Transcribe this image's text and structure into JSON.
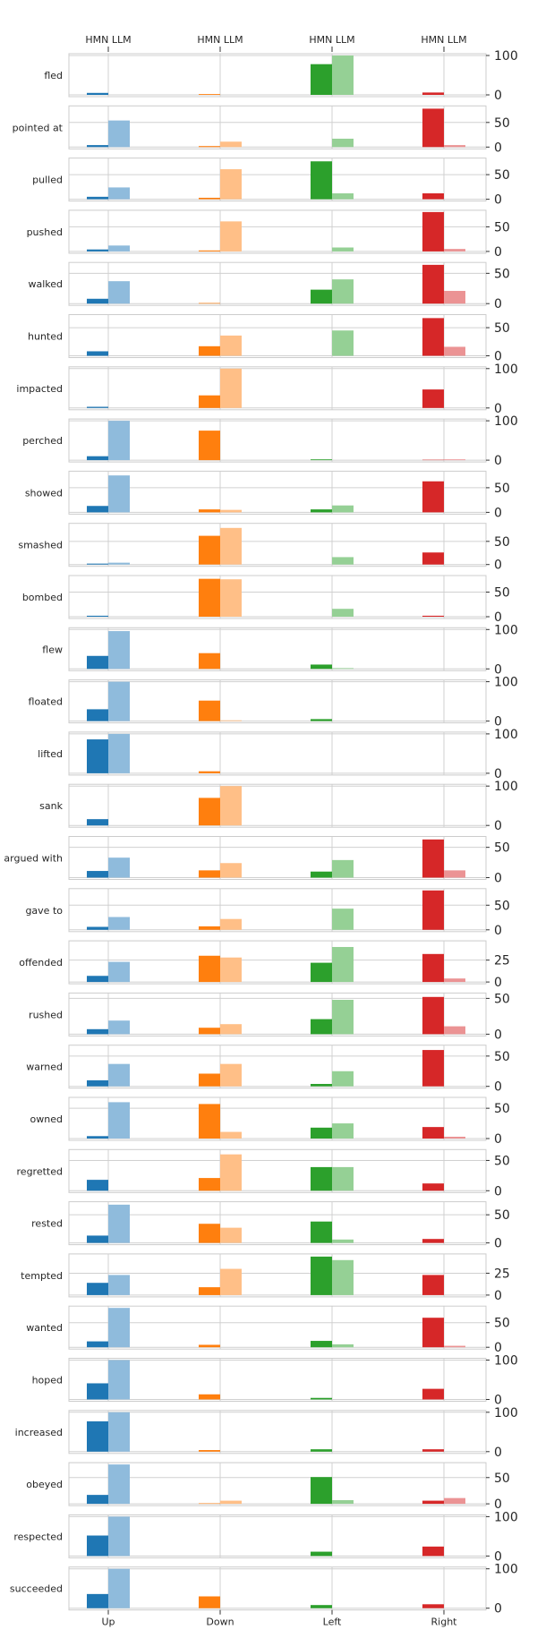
{
  "chart_data": {
    "type": "bar",
    "categories": [
      "Up",
      "Down",
      "Left",
      "Right"
    ],
    "top_labels": [
      "HMN LLM",
      "HMN LLM",
      "HMN LLM",
      "HMN LLM"
    ],
    "series_names": [
      "HMN",
      "LLM"
    ],
    "colors": {
      "Up": [
        "#1f77b4",
        "#8fbbdc"
      ],
      "Down": [
        "#ff7f0e",
        "#ffbf87"
      ],
      "Left": [
        "#2ca02c",
        "#95d095"
      ],
      "Right": [
        "#d62728",
        "#eb9394"
      ]
    },
    "grid": true,
    "panels": [
      {
        "label": "fled",
        "ymax": 100,
        "yticks": [
          0,
          100
        ],
        "hmn": [
          5,
          2,
          78,
          6
        ],
        "llm": [
          0,
          0,
          100,
          0
        ]
      },
      {
        "label": "pointed at",
        "ymax": 80,
        "yticks": [
          0,
          50
        ],
        "hmn": [
          4,
          2,
          0,
          78
        ],
        "llm": [
          54,
          11,
          17,
          4
        ]
      },
      {
        "label": "pulled",
        "ymax": 80,
        "yticks": [
          0,
          50
        ],
        "hmn": [
          5,
          3,
          77,
          12
        ],
        "llm": [
          24,
          61,
          12,
          0
        ]
      },
      {
        "label": "pushed",
        "ymax": 80,
        "yticks": [
          0,
          50
        ],
        "hmn": [
          4,
          2,
          0,
          80
        ],
        "llm": [
          12,
          61,
          8,
          5
        ]
      },
      {
        "label": "walked",
        "ymax": 65,
        "yticks": [
          0,
          50
        ],
        "hmn": [
          8,
          1,
          23,
          64
        ],
        "llm": [
          37,
          0,
          40,
          21
        ]
      },
      {
        "label": "hunted",
        "ymax": 70,
        "yticks": [
          0,
          50
        ],
        "hmn": [
          8,
          17,
          0,
          67
        ],
        "llm": [
          0,
          36,
          45,
          16
        ]
      },
      {
        "label": "impacted",
        "ymax": 100,
        "yticks": [
          0,
          100
        ],
        "hmn": [
          3,
          32,
          0,
          47
        ],
        "llm": [
          0,
          100,
          0,
          0
        ]
      },
      {
        "label": "perched",
        "ymax": 100,
        "yticks": [
          0,
          100
        ],
        "hmn": [
          10,
          75,
          2,
          1
        ],
        "llm": [
          100,
          0,
          0,
          2
        ]
      },
      {
        "label": "showed",
        "ymax": 80,
        "yticks": [
          0,
          50
        ],
        "hmn": [
          13,
          6,
          6,
          63
        ],
        "llm": [
          75,
          5,
          14,
          0
        ]
      },
      {
        "label": "smashed",
        "ymax": 85,
        "yticks": [
          0,
          50
        ],
        "hmn": [
          2,
          62,
          0,
          26
        ],
        "llm": [
          4,
          79,
          16,
          0
        ]
      },
      {
        "label": "bombed",
        "ymax": 80,
        "yticks": [
          0,
          50
        ],
        "hmn": [
          2,
          77,
          0,
          2
        ],
        "llm": [
          0,
          76,
          16,
          0
        ]
      },
      {
        "label": "flew",
        "ymax": 100,
        "yticks": [
          0,
          100
        ],
        "hmn": [
          33,
          40,
          11,
          0
        ],
        "llm": [
          96,
          0,
          2,
          0
        ]
      },
      {
        "label": "floated",
        "ymax": 100,
        "yticks": [
          0,
          100
        ],
        "hmn": [
          30,
          52,
          5,
          0
        ],
        "llm": [
          100,
          2,
          0,
          0
        ]
      },
      {
        "label": "lifted",
        "ymax": 100,
        "yticks": [
          0,
          100
        ],
        "hmn": [
          86,
          5,
          0,
          0
        ],
        "llm": [
          100,
          0,
          0,
          0
        ]
      },
      {
        "label": "sank",
        "ymax": 100,
        "yticks": [
          0,
          100
        ],
        "hmn": [
          16,
          70,
          0,
          0
        ],
        "llm": [
          0,
          100,
          0,
          0
        ]
      },
      {
        "label": "argued with",
        "ymax": 65,
        "yticks": [
          0,
          50
        ],
        "hmn": [
          11,
          12,
          10,
          63
        ],
        "llm": [
          33,
          24,
          29,
          12
        ]
      },
      {
        "label": "gave to",
        "ymax": 80,
        "yticks": [
          0,
          50
        ],
        "hmn": [
          6,
          7,
          0,
          80
        ],
        "llm": [
          26,
          22,
          43,
          0
        ]
      },
      {
        "label": "offended",
        "ymax": 45,
        "yticks": [
          0,
          25
        ],
        "hmn": [
          7,
          30,
          22,
          32
        ],
        "llm": [
          23,
          28,
          40,
          4
        ]
      },
      {
        "label": "rushed",
        "ymax": 55,
        "yticks": [
          0,
          50
        ],
        "hmn": [
          7,
          9,
          21,
          52
        ],
        "llm": [
          19,
          14,
          48,
          11
        ]
      },
      {
        "label": "warned",
        "ymax": 65,
        "yticks": [
          0,
          50
        ],
        "hmn": [
          10,
          21,
          4,
          60
        ],
        "llm": [
          37,
          37,
          25,
          0
        ]
      },
      {
        "label": "owned",
        "ymax": 65,
        "yticks": [
          0,
          50
        ],
        "hmn": [
          4,
          57,
          18,
          19
        ],
        "llm": [
          60,
          11,
          25,
          3
        ]
      },
      {
        "label": "regretted",
        "ymax": 65,
        "yticks": [
          0,
          50
        ],
        "hmn": [
          18,
          21,
          39,
          12
        ],
        "llm": [
          0,
          60,
          39,
          0
        ]
      },
      {
        "label": "rested",
        "ymax": 70,
        "yticks": [
          0,
          50
        ],
        "hmn": [
          13,
          34,
          38,
          7
        ],
        "llm": [
          68,
          27,
          6,
          0
        ]
      },
      {
        "label": "tempted",
        "ymax": 45,
        "yticks": [
          0,
          25
        ],
        "hmn": [
          14,
          9,
          44,
          23
        ],
        "llm": [
          23,
          30,
          40,
          0
        ]
      },
      {
        "label": "wanted",
        "ymax": 80,
        "yticks": [
          0,
          50
        ],
        "hmn": [
          12,
          5,
          13,
          60
        ],
        "llm": [
          80,
          0,
          6,
          3
        ]
      },
      {
        "label": "hoped",
        "ymax": 100,
        "yticks": [
          0,
          100
        ],
        "hmn": [
          41,
          13,
          4,
          27
        ],
        "llm": [
          100,
          0,
          0,
          0
        ]
      },
      {
        "label": "increased",
        "ymax": 100,
        "yticks": [
          0,
          100
        ],
        "hmn": [
          77,
          4,
          6,
          6
        ],
        "llm": [
          100,
          0,
          0,
          0
        ]
      },
      {
        "label": "obeyed",
        "ymax": 75,
        "yticks": [
          0,
          50
        ],
        "hmn": [
          17,
          1,
          51,
          6
        ],
        "llm": [
          75,
          6,
          7,
          11
        ]
      },
      {
        "label": "respected",
        "ymax": 100,
        "yticks": [
          0,
          100
        ],
        "hmn": [
          52,
          0,
          11,
          24
        ],
        "llm": [
          100,
          0,
          0,
          0
        ]
      },
      {
        "label": "succeeded",
        "ymax": 100,
        "yticks": [
          0,
          100
        ],
        "hmn": [
          36,
          30,
          8,
          10
        ],
        "llm": [
          100,
          0,
          0,
          0
        ]
      }
    ]
  }
}
